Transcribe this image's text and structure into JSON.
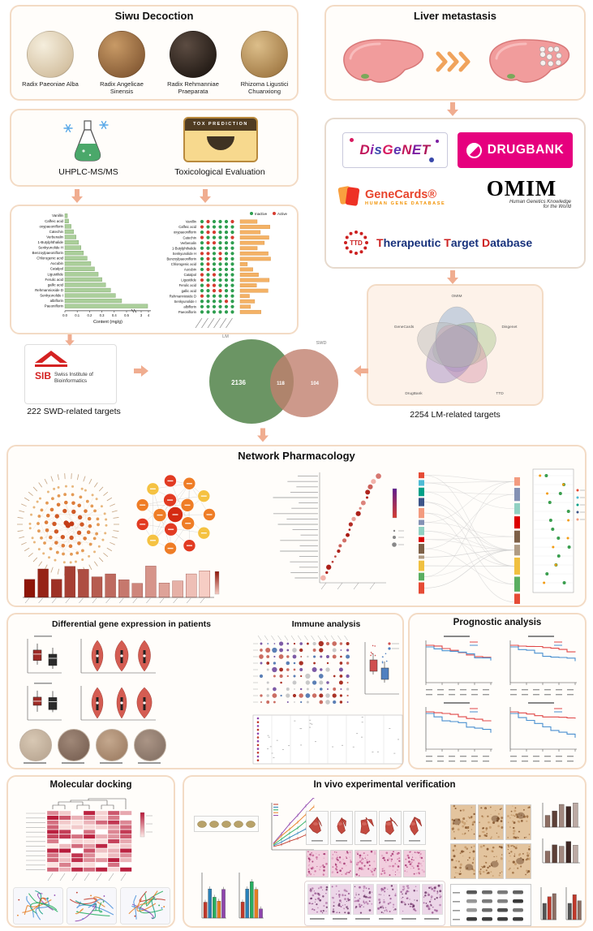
{
  "colors": {
    "panel_border": "#f3dbc5",
    "arrow": "#f0ad90",
    "bar_green": "#abcf9b",
    "venn_green": "#638f5c",
    "venn_pink": "#c1806e",
    "km_red": "#e04848",
    "km_blue": "#4a90d0",
    "drugbank_pink": "#e6007e",
    "genecards_red": "#e8442c",
    "ttd_red": "#cc2020",
    "ttd_blue": "#18327c",
    "liver_pink": "#f19c9c"
  },
  "siwu": {
    "title": "Siwu Decoction",
    "herbs": [
      {
        "name": "Radix Paeoniae Alba"
      },
      {
        "name": "Radix Angelicae Sinensis"
      },
      {
        "name": "Radix Rehmanniae Praeparata"
      },
      {
        "name": "Rhizoma Ligustici Chuanxiong"
      }
    ]
  },
  "liver": {
    "title": "Liver metastasis"
  },
  "methods": {
    "uhplc_label": "UHPLC-MS/MS",
    "tox_label": "Toxicological Evaluation",
    "tox_box_text": "TOX PREDICTION"
  },
  "content_chart": {
    "type": "bar",
    "xlabel": "Content (mg/g)",
    "x_ticks": [
      "0.0",
      "0.1",
      "0.2",
      "0.3",
      "0.4",
      "0.5",
      "3",
      "4"
    ],
    "compounds": [
      "Vanillin",
      "Caffeic acid",
      "oxypaeoniflorin",
      "Catechin",
      "Verbenalin",
      "1-Butylphthalide",
      "Senkyunolide H",
      "Benzoylpaeoniflorin",
      "Chlorogenic acid",
      "Aucubin",
      "Catalpol",
      "Ligustilide",
      "Ferulic acid",
      "gallic acid",
      "Rehmannioside D",
      "Senkyunolide I",
      "albiflorin",
      "Paeoniflorin"
    ],
    "values": [
      0.02,
      0.03,
      0.05,
      0.07,
      0.09,
      0.11,
      0.13,
      0.15,
      0.18,
      0.21,
      0.24,
      0.27,
      0.3,
      0.33,
      0.37,
      0.41,
      0.46,
      4.0
    ]
  },
  "tox_chart": {
    "type": "dot-matrix",
    "legend": [
      {
        "label": "Inactive",
        "color": "#2e9e4f"
      },
      {
        "label": "Active",
        "color": "#d63b2f"
      }
    ]
  },
  "databases": {
    "disgenet": "DisGeNET",
    "drugbank": "DRUGBANK",
    "genecards": "GeneCards®",
    "genecards_sub": "HUMAN GENE DATABASE",
    "omim": "OMIM",
    "omim_sub1": "Human Genetics Knowledge",
    "omim_sub2": "for the World",
    "ttd_abbr": "TTD",
    "ttd_parts": {
      "c1": "T",
      "r1": "herapeutic ",
      "c2": "T",
      "r2": "arget ",
      "c3": "D",
      "r3": "atabase"
    }
  },
  "venn5": {
    "labels": [
      "OMIM",
      "Disgenet",
      "TTD",
      "DrugBank",
      "GeneCards"
    ]
  },
  "sib": {
    "abbr": "SIB",
    "line1": "Swiss Institute of",
    "line2": "Bioinformatics"
  },
  "targets": {
    "swd": "222 SWD-related targets",
    "lm": "2254 LM-related targets"
  },
  "venn2": {
    "left_set": "LM",
    "right_set": "SWD",
    "left_count": "2136",
    "overlap_count": "118",
    "right_count": "104"
  },
  "sections": {
    "network": "Network Pharmacology",
    "dge": "Differential gene expression in patients",
    "immune": "Immune analysis",
    "prognostic": "Prognostic analysis",
    "docking": "Molecular docking",
    "invivo": "In vivo  experimental verification"
  }
}
